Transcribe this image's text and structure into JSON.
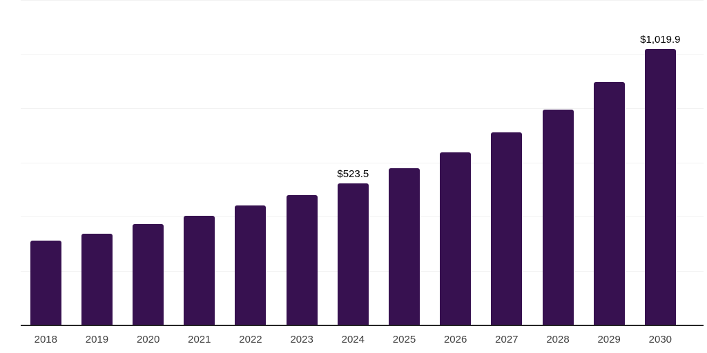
{
  "chart_data": {
    "type": "bar",
    "title": "",
    "xlabel": "",
    "ylabel": "",
    "categories": [
      "2018",
      "2019",
      "2020",
      "2021",
      "2022",
      "2023",
      "2024",
      "2025",
      "2026",
      "2027",
      "2028",
      "2029",
      "2030"
    ],
    "values": [
      310,
      336,
      372,
      402,
      440,
      480,
      523.5,
      578,
      636,
      712,
      796,
      897,
      1019.9
    ],
    "point_labels": [
      "",
      "",
      "",
      "",
      "",
      "",
      "$523.5",
      "",
      "",
      "",
      "",
      "",
      "$1,019.9"
    ],
    "ylim": [
      0,
      1200
    ],
    "gridline_step": 200,
    "grid": "horizontal",
    "y_axis_labels_visible": false,
    "legend_position": "none",
    "colors": {
      "bar": "#371150",
      "gridline": "#f2f2f2",
      "axis": "#262626",
      "tick_label": "#404040",
      "data_label": "#000000",
      "background": "#ffffff"
    }
  }
}
